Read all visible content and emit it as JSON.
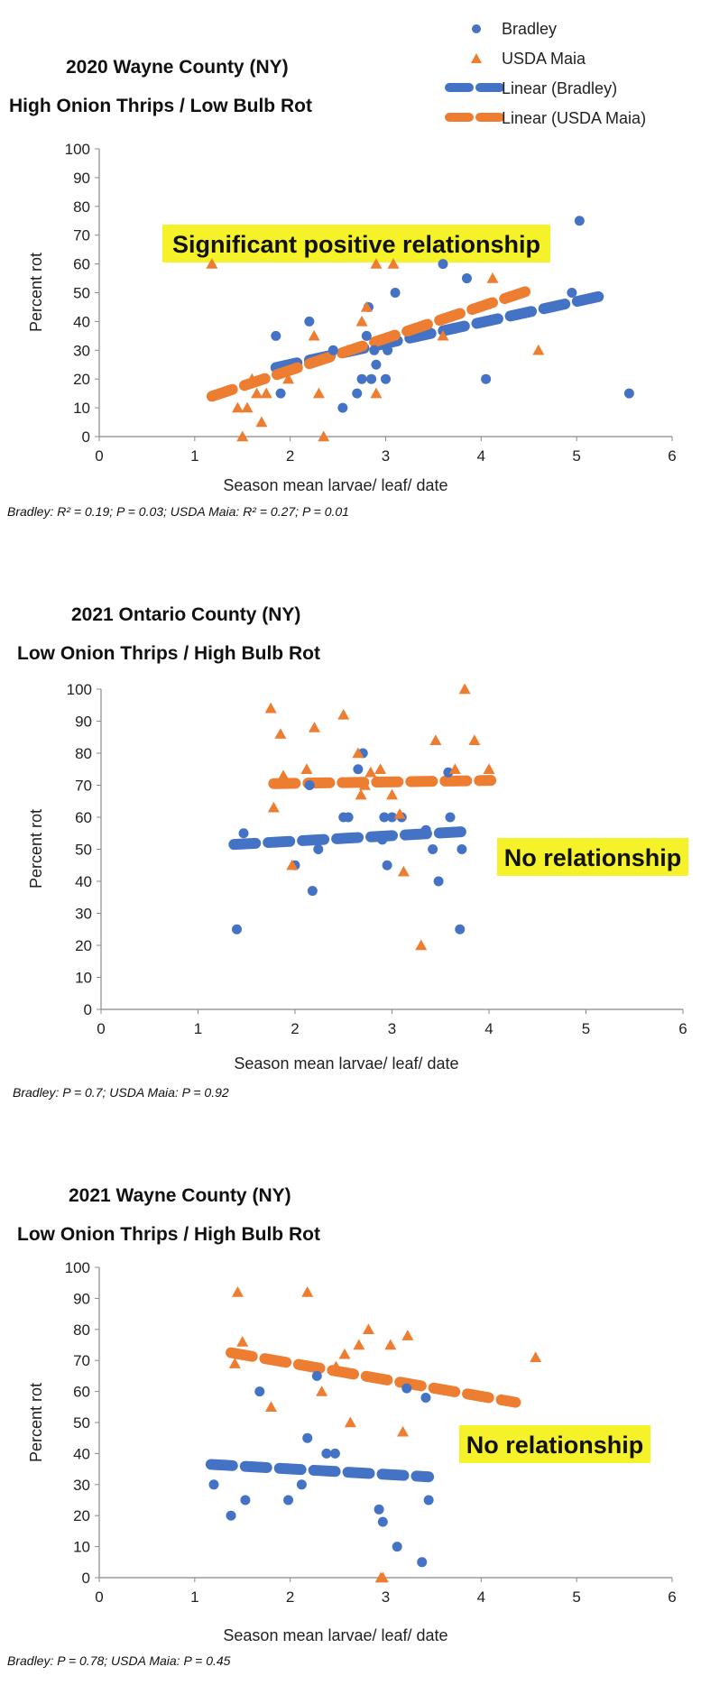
{
  "legend": {
    "series1": "Bradley",
    "series2": "USDA Maia",
    "trend1": "Linear (Bradley)",
    "trend2": "Linear (USDA Maia)"
  },
  "colors": {
    "bradley": "#4472c4",
    "maia": "#ed7d31",
    "highlight": "#f5f22a"
  },
  "chart_data": [
    {
      "type": "scatter",
      "title": "2020 Wayne County (NY)",
      "subtitle": "High Onion Thrips / Low Bulb Rot",
      "xlabel": "Season mean larvae/ leaf/ date",
      "ylabel": "Percent rot",
      "xlim": [
        0,
        6
      ],
      "ylim": [
        0,
        100
      ],
      "xticks": [
        0,
        1,
        2,
        3,
        4,
        5,
        6
      ],
      "yticks": [
        0,
        10,
        20,
        30,
        40,
        50,
        60,
        70,
        80,
        90,
        100
      ],
      "annotation": "Significant positive relationship",
      "stats": "Bradley: R² = 0.19; P = 0.03; USDA Maia: R² = 0.27; P = 0.01",
      "series": [
        {
          "name": "Bradley",
          "marker": "circle",
          "x": [
            1.85,
            1.9,
            2.2,
            2.45,
            2.55,
            2.7,
            2.75,
            2.8,
            2.82,
            2.85,
            2.9,
            2.88,
            3.0,
            3.02,
            3.1,
            3.6,
            3.85,
            4.05,
            4.95,
            5.03,
            5.55
          ],
          "y": [
            35,
            15,
            40,
            30,
            10,
            15,
            20,
            35,
            45,
            20,
            25,
            30,
            20,
            30,
            50,
            60,
            55,
            20,
            50,
            75,
            15
          ]
        },
        {
          "name": "USDA Maia",
          "marker": "triangle",
          "x": [
            1.18,
            1.45,
            1.5,
            1.55,
            1.6,
            1.65,
            1.7,
            1.75,
            1.98,
            2.25,
            2.3,
            2.35,
            2.6,
            2.75,
            2.8,
            2.9,
            3.08,
            3.6,
            4.12,
            4.6,
            2.9
          ],
          "y": [
            60,
            10,
            0,
            10,
            20,
            15,
            5,
            15,
            20,
            35,
            15,
            0,
            30,
            40,
            45,
            15,
            60,
            35,
            55,
            30,
            60
          ]
        }
      ],
      "trendlines": [
        {
          "name": "Linear (Bradley)",
          "x": [
            1.85,
            5.28
          ],
          "y": [
            24,
            49
          ]
        },
        {
          "name": "Linear (USDA Maia)",
          "x": [
            1.18,
            4.52
          ],
          "y": [
            14,
            51
          ]
        }
      ]
    },
    {
      "type": "scatter",
      "title": "2021 Ontario County (NY)",
      "subtitle": "Low Onion Thrips / High Bulb Rot",
      "xlabel": "Season mean larvae/ leaf/ date",
      "ylabel": "Percent rot",
      "xlim": [
        0,
        6
      ],
      "ylim": [
        0,
        100
      ],
      "xticks": [
        0,
        1,
        2,
        3,
        4,
        5,
        6
      ],
      "yticks": [
        0,
        10,
        20,
        30,
        40,
        50,
        60,
        70,
        80,
        90,
        100
      ],
      "annotation": "No relationship",
      "stats": "Bradley: P = 0.7; USDA Maia: P = 0.92",
      "series": [
        {
          "name": "Bradley",
          "marker": "circle",
          "x": [
            1.4,
            1.47,
            2.0,
            2.15,
            2.18,
            2.24,
            2.5,
            2.55,
            2.65,
            2.7,
            2.9,
            2.92,
            2.95,
            3.0,
            3.1,
            3.35,
            3.42,
            3.48,
            3.58,
            3.6,
            3.7,
            3.72
          ],
          "y": [
            25,
            55,
            45,
            70,
            37,
            50,
            60,
            60,
            75,
            80,
            53,
            60,
            45,
            60,
            60,
            56,
            50,
            40,
            74,
            60,
            25,
            50
          ]
        },
        {
          "name": "USDA Maia",
          "marker": "triangle",
          "x": [
            1.75,
            1.78,
            1.85,
            1.88,
            1.97,
            2.12,
            2.2,
            2.5,
            2.65,
            2.68,
            2.72,
            2.78,
            2.88,
            3.0,
            3.08,
            3.12,
            3.3,
            3.45,
            3.65,
            3.75,
            3.85,
            4.0
          ],
          "y": [
            94,
            63,
            86,
            73,
            45,
            75,
            88,
            92,
            80,
            67,
            70,
            74,
            75,
            67,
            61,
            43,
            20,
            84,
            75,
            100,
            84,
            75
          ]
        }
      ],
      "trendlines": [
        {
          "name": "Linear (Bradley)",
          "x": [
            1.37,
            3.74
          ],
          "y": [
            51.5,
            55.5
          ]
        },
        {
          "name": "Linear (USDA Maia)",
          "x": [
            1.78,
            4.02
          ],
          "y": [
            70.5,
            71.5
          ]
        }
      ]
    },
    {
      "type": "scatter",
      "title": "2021 Wayne County (NY)",
      "subtitle": "Low Onion Thrips / High Bulb Rot",
      "xlabel": "Season mean larvae/ leaf/ date",
      "ylabel": "Percent rot",
      "xlim": [
        0,
        6
      ],
      "ylim": [
        0,
        100
      ],
      "xticks": [
        0,
        1,
        2,
        3,
        4,
        5,
        6
      ],
      "yticks": [
        0,
        10,
        20,
        30,
        40,
        50,
        60,
        70,
        80,
        90,
        100
      ],
      "annotation": "No relationship",
      "stats": "Bradley: P = 0.78; USDA Maia: P = 0.45",
      "series": [
        {
          "name": "Bradley",
          "marker": "circle",
          "x": [
            1.2,
            1.38,
            1.53,
            1.68,
            1.98,
            2.12,
            2.18,
            2.28,
            2.38,
            2.47,
            2.93,
            2.97,
            3.12,
            3.22,
            3.38,
            3.42,
            3.45
          ],
          "y": [
            30,
            20,
            25,
            60,
            25,
            30,
            45,
            65,
            40,
            40,
            22,
            18,
            10,
            61,
            5,
            58,
            25
          ]
        },
        {
          "name": "USDA Maia",
          "marker": "triangle",
          "x": [
            1.42,
            1.45,
            1.5,
            1.8,
            2.18,
            2.33,
            2.48,
            2.57,
            2.63,
            2.72,
            2.82,
            2.95,
            3.05,
            3.18,
            3.23,
            4.57,
            2.97
          ],
          "y": [
            69,
            92,
            76,
            55,
            92,
            60,
            68,
            72,
            50,
            75,
            80,
            0,
            75,
            47,
            78,
            71,
            0
          ]
        }
      ],
      "trendlines": [
        {
          "name": "Linear (Bradley)",
          "x": [
            1.17,
            3.45
          ],
          "y": [
            36.5,
            32.5
          ]
        },
        {
          "name": "Linear (USDA Maia)",
          "x": [
            1.38,
            4.36
          ],
          "y": [
            72.5,
            56.5
          ]
        }
      ]
    }
  ]
}
